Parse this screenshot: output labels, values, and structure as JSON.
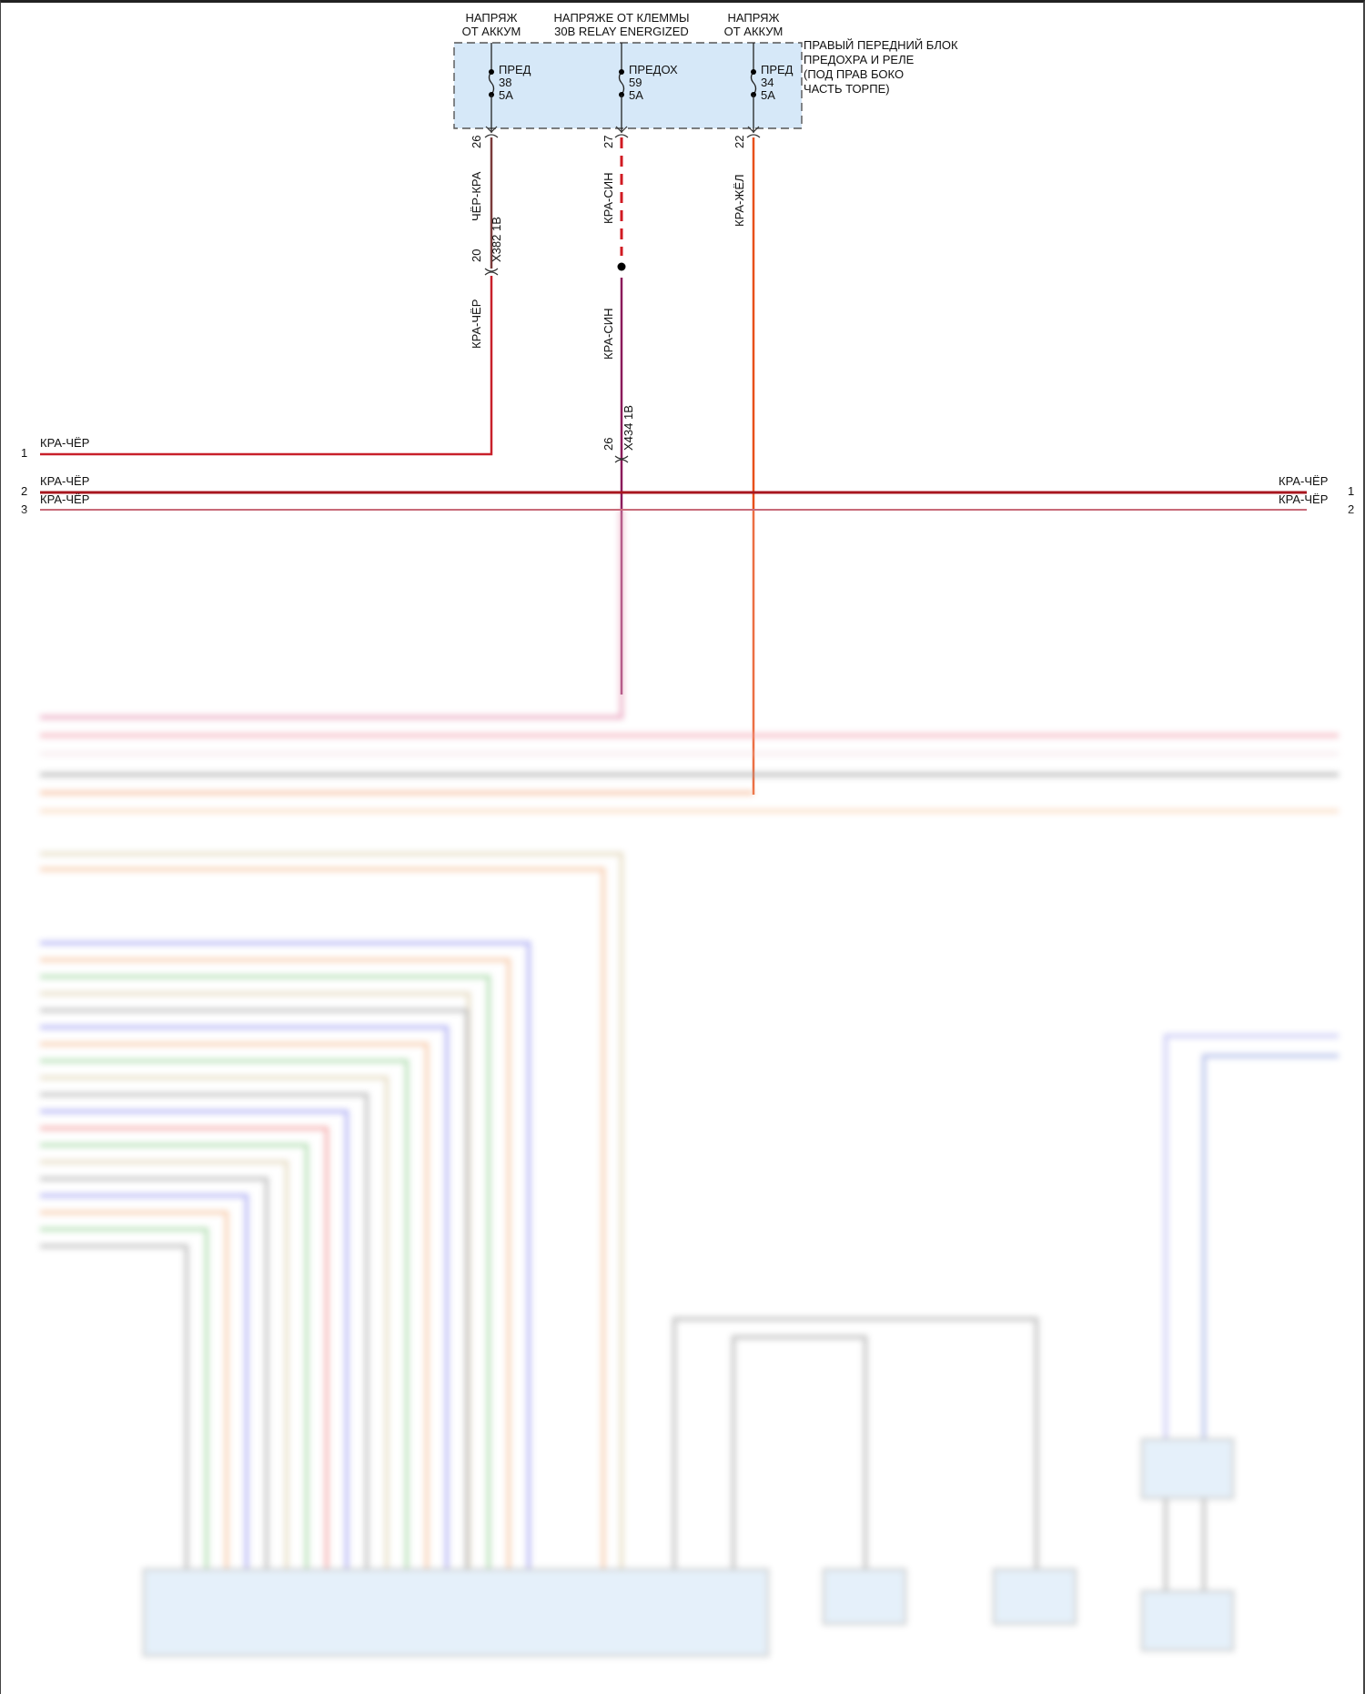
{
  "sources": [
    {
      "line1": "НАПРЯЖ",
      "line2": "ОТ АККУМ"
    },
    {
      "line1": "НАПРЯЖЕ ОТ КЛЕММЫ",
      "line2": "30B RELAY ENERGIZED"
    },
    {
      "line1": "НАПРЯЖ",
      "line2": "ОТ АККУМ"
    }
  ],
  "fuse_block": {
    "label": [
      "ПРАВЫЙ ПЕРЕДНИЙ БЛОК",
      "ПРЕДОХРА И РЕЛЕ",
      "(ПОД ПРАВ БОКО",
      "ЧАСТЬ ТОРПЕ)"
    ],
    "fill_color": "#d6e8f8",
    "fuses": [
      {
        "name": "ПРЕД",
        "number": "38",
        "rating": "5A",
        "pin": "26"
      },
      {
        "name": "ПРЕДОХ",
        "number": "59",
        "rating": "5A",
        "pin": "27"
      },
      {
        "name": "ПРЕД",
        "number": "34",
        "rating": "5A",
        "pin": "22"
      }
    ]
  },
  "wires": {
    "left": {
      "upper_color": "ЧЁР-КРА",
      "connector": "X382 1B",
      "connector_pin": "20",
      "lower_color": "КРА-ЧЁР"
    },
    "middle": {
      "upper_color": "КРА-СИН",
      "lower_color": "КРА-СИН",
      "connector": "X434 1B",
      "connector_pin": "26"
    },
    "right": {
      "color": "КРА-ЖЁЛ"
    }
  },
  "left_pins": [
    {
      "pin": "1",
      "color": "КРА-ЧЁР"
    },
    {
      "pin": "2",
      "color": "КРА-ЧЁР"
    },
    {
      "pin": "3",
      "color": "КРА-ЧЁР"
    }
  ],
  "right_pins": [
    {
      "pin": "1",
      "color": "КРА-ЧЁР"
    },
    {
      "pin": "2",
      "color": "КРА-ЧЁР"
    }
  ],
  "colors": {
    "red": "#c8202a",
    "brown": "#7a3a3a",
    "purple": "#8b1a5a",
    "orange": "#e8501a",
    "dark_red": "#8a1a1a"
  }
}
